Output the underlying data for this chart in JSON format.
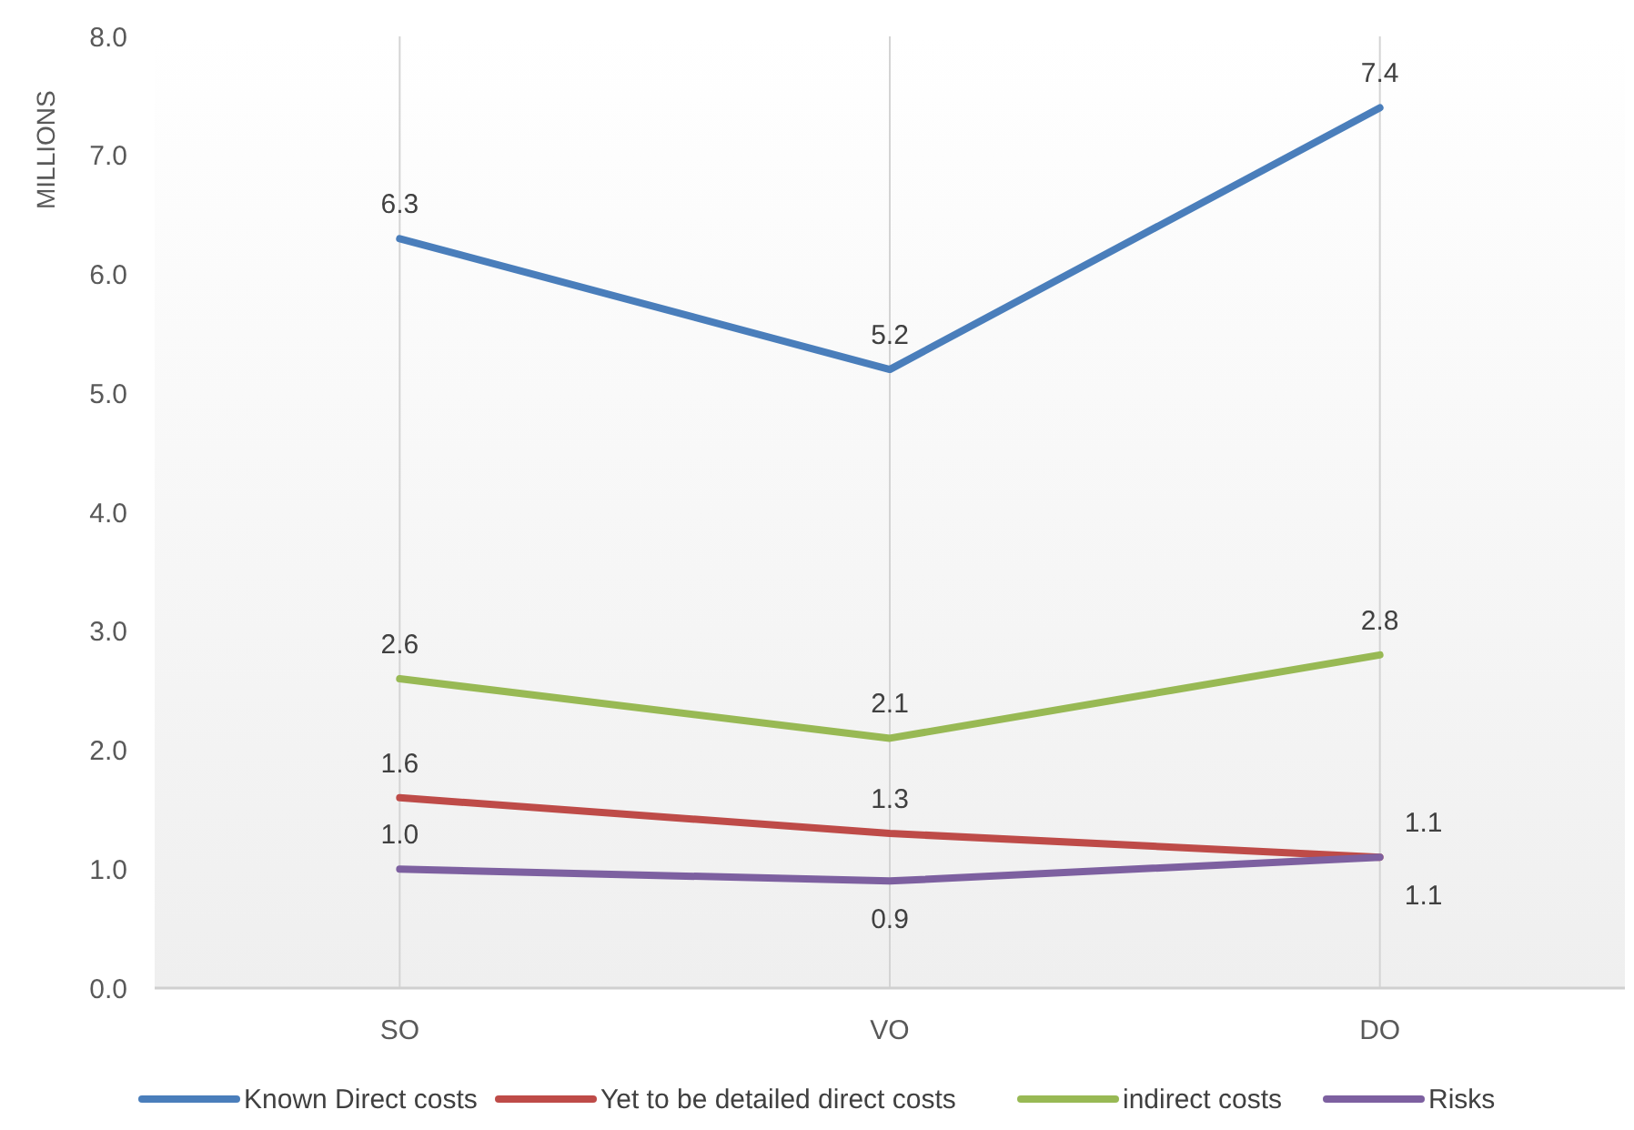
{
  "chart_data": {
    "type": "line",
    "ylabel": "MILLIONS",
    "categories": [
      "SO",
      "VO",
      "DO"
    ],
    "series": [
      {
        "name": "Known Direct costs",
        "color": "#4a7ebb",
        "values": [
          6.3,
          5.2,
          7.4
        ],
        "value_labels": [
          "6.3",
          "5.2",
          "7.4"
        ]
      },
      {
        "name": "Yet to be detailed direct costs",
        "color": "#be4b48",
        "values": [
          1.6,
          1.3,
          1.1
        ],
        "value_labels": [
          "1.6",
          "1.3",
          "1.1"
        ]
      },
      {
        "name": "indirect costs",
        "color": "#98b954",
        "values": [
          2.6,
          2.1,
          2.8
        ],
        "value_labels": [
          "2.6",
          "2.1",
          "2.8"
        ]
      },
      {
        "name": "Risks",
        "color": "#7d60a0",
        "values": [
          1.0,
          0.9,
          1.1
        ],
        "value_labels": [
          "1.0",
          "0.9",
          "1.1"
        ]
      }
    ],
    "ylim": [
      0,
      8
    ],
    "yticks": [
      {
        "value": 0,
        "label": "0.0"
      },
      {
        "value": 1,
        "label": "1.0"
      },
      {
        "value": 2,
        "label": "2.0"
      },
      {
        "value": 3,
        "label": "3.0"
      },
      {
        "value": 4,
        "label": "4.0"
      },
      {
        "value": 5,
        "label": "5.0"
      },
      {
        "value": 6,
        "label": "6.0"
      },
      {
        "value": 7,
        "label": "7.0"
      },
      {
        "value": 8,
        "label": "8.0"
      }
    ],
    "grid": "x",
    "legend": "bottom",
    "marker": "none",
    "line_style": "solid"
  }
}
